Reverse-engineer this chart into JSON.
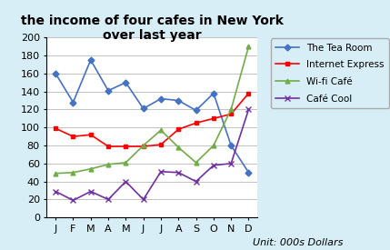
{
  "months": [
    "J",
    "F",
    "M",
    "A",
    "M",
    "J",
    "J",
    "A",
    "S",
    "O",
    "N",
    "D"
  ],
  "tea_room": [
    160,
    128,
    175,
    141,
    150,
    121,
    132,
    130,
    119,
    138,
    80,
    50
  ],
  "internet_express": [
    99,
    90,
    92,
    79,
    79,
    79,
    81,
    98,
    105,
    110,
    115,
    138
  ],
  "wifi_cafe": [
    49,
    50,
    54,
    59,
    61,
    80,
    97,
    78,
    61,
    80,
    120,
    190
  ],
  "cafe_cool": [
    29,
    19,
    29,
    20,
    40,
    20,
    51,
    50,
    40,
    58,
    60,
    120
  ],
  "tea_room_color": "#4472C4",
  "internet_express_color": "#FF0000",
  "wifi_cafe_color": "#70AD47",
  "cafe_cool_color": "#7030A0",
  "title_line1": "the income of four cafes in New York",
  "title_line2": "over last year",
  "ylabel_unit": "Unit: 000s Dollars",
  "ylim": [
    0,
    200
  ],
  "yticks": [
    0,
    20,
    40,
    60,
    80,
    100,
    120,
    140,
    160,
    180,
    200
  ],
  "legend_labels": [
    "The Tea Room",
    "Internet Express",
    "Wi-fi Café",
    "Café Cool"
  ],
  "title_fontsize": 10,
  "tick_fontsize": 8,
  "legend_fontsize": 7.5,
  "unit_fontsize": 8,
  "background_color": "#D8EEF7"
}
